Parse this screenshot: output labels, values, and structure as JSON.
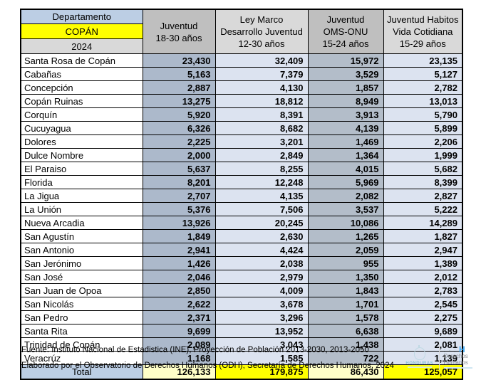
{
  "table": {
    "corner": {
      "line1": "Departamento",
      "line2": "COPÁN",
      "line3": "2024"
    },
    "columns": [
      {
        "lines": [
          "Juventud",
          "18-30 años"
        ]
      },
      {
        "lines": [
          "Ley Marco",
          "Desarrollo  Juventud",
          "12-30 años"
        ]
      },
      {
        "lines": [
          "Juventud",
          "OMS-ONU",
          "15-24 años"
        ]
      },
      {
        "lines": [
          "Juventud Habitos",
          "Vida Cotidiana",
          "15-29 años"
        ]
      }
    ],
    "rows": [
      {
        "name": "Santa Rosa de Copán",
        "values": [
          "23,430",
          "32,409",
          "15,972",
          "23,135"
        ]
      },
      {
        "name": "Cabañas",
        "values": [
          "5,163",
          "7,379",
          "3,529",
          "5,127"
        ]
      },
      {
        "name": "Concepción",
        "values": [
          "2,887",
          "4,130",
          "1,857",
          "2,782"
        ]
      },
      {
        "name": "Copán Ruinas",
        "values": [
          "13,275",
          "18,812",
          "8,949",
          "13,013"
        ]
      },
      {
        "name": "Corquín",
        "values": [
          "5,920",
          "8,391",
          "3,913",
          "5,790"
        ]
      },
      {
        "name": "Cucuyagua",
        "values": [
          "6,326",
          "8,682",
          "4,139",
          "5,899"
        ]
      },
      {
        "name": "Dolores",
        "values": [
          "2,225",
          "3,201",
          "1,469",
          "2,206"
        ]
      },
      {
        "name": "Dulce Nombre",
        "values": [
          "2,000",
          "2,849",
          "1,364",
          "1,999"
        ]
      },
      {
        "name": "El Paraiso",
        "values": [
          "5,637",
          "8,255",
          "4,015",
          "5,682"
        ]
      },
      {
        "name": "Florida",
        "values": [
          "8,201",
          "12,248",
          "5,969",
          "8,399"
        ]
      },
      {
        "name": "La Jigua",
        "values": [
          "2,707",
          "4,135",
          "2,082",
          "2,827"
        ]
      },
      {
        "name": "La Unión",
        "values": [
          "5,376",
          "7,506",
          "3,537",
          "5,222"
        ]
      },
      {
        "name": "Nueva Arcadia",
        "values": [
          "13,926",
          "20,245",
          "10,086",
          "14,289"
        ]
      },
      {
        "name": "San Agustín",
        "values": [
          "1,849",
          "2,630",
          "1,265",
          "1,827"
        ]
      },
      {
        "name": "San Antonio",
        "values": [
          "2,941",
          "4,424",
          "2,059",
          "2,947"
        ]
      },
      {
        "name": "San Jerónimo",
        "values": [
          "1,426",
          "2,038",
          "955",
          "1,389"
        ]
      },
      {
        "name": "San José",
        "values": [
          "2,046",
          "2,979",
          "1,350",
          "2,012"
        ]
      },
      {
        "name": "San Juan de Opoa",
        "values": [
          "2,850",
          "4,009",
          "1,843",
          "2,783"
        ]
      },
      {
        "name": "San Nicolás",
        "values": [
          "2,622",
          "3,678",
          "1,701",
          "2,545"
        ]
      },
      {
        "name": "San Pedro",
        "values": [
          "2,371",
          "3,296",
          "1,578",
          "2,275"
        ]
      },
      {
        "name": "Santa Rita",
        "values": [
          "9,699",
          "13,952",
          "6,638",
          "9,689"
        ]
      },
      {
        "name": "Trinidad de Copán",
        "values": [
          "2,089",
          "3,043",
          "1,438",
          "2,081"
        ]
      },
      {
        "name": "Veracrúz",
        "values": [
          "1,168",
          "1,585",
          "722",
          "1,139"
        ]
      }
    ],
    "total": {
      "label": "Total",
      "values": [
        "126,133",
        "179,875",
        "86,430",
        "125,057"
      ]
    }
  },
  "footer": {
    "source": "Fuente: Instituto Nacional de Estadistica (INE), Proyección de Población 2013-2030, 2013-2050",
    "elaborated": "Elaborado por el Observatorio de Derechos Humanos (ODH), Secretaría de Derechos Humanos, 2024",
    "logo_honduras": "HONDURAS",
    "logo_dh_dots": ": · : ",
    "logo_dh_h": "H",
    "logo_dh_line1": "Derechos",
    "logo_dh_line2": "Humanos"
  },
  "colors": {
    "highlight_yellow": "#FFFF00",
    "pale_yellow": "#FFFFC8",
    "header_blue": "#BCCEE4",
    "header_gray": "#BFBFBF",
    "header_light_gray": "#D9D9D9",
    "col_blue_gray": "#ACB9CB",
    "col_light_blue": "#DCE3F0"
  }
}
